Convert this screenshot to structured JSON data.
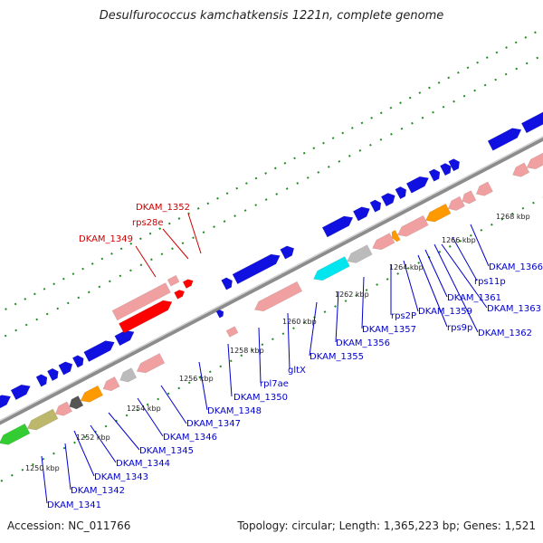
{
  "header": {
    "title": "Desulfurococcus kamchatkensis 1221n, complete genome"
  },
  "footer": {
    "accession": "Accession: NC_011766",
    "stats": "Topology: circular; Length: 1,365,223 bp; Genes: 1,521"
  },
  "colors": {
    "backbone": "#8c8c8c",
    "cds_forward": "#1010e0",
    "cds_reverse": "#f0a0a0",
    "highlight": "#ff0000",
    "rna_cyan": "#00e5ee",
    "orange": "#ff9900",
    "olive": "#bdb76b",
    "green": "#33cc33",
    "grey": "#bbbbbb",
    "dark": "#555555",
    "tick": "#228b22",
    "label_blue": "#0000cc",
    "label_red": "#cc0000"
  },
  "scale": {
    "kbp_ticks": [
      "1250 kbp",
      "1252 kbp",
      "1254 kbp",
      "1256 kbp",
      "1258 kbp",
      "1260 kbp",
      "1262 kbp",
      "1264 kbp",
      "1266 kbp",
      "1268 kbp"
    ]
  },
  "genes": {
    "red_labels": [
      "DKAM_1352",
      "rps28e",
      "DKAM_1349"
    ],
    "blue_labels": [
      "DKAM_1366",
      "rps11p",
      "DKAM_1363",
      "DKAM_1361",
      "DKAM_1362",
      "rps9p",
      "DKAM_1359",
      "rps2P",
      "DKAM_1357",
      "DKAM_1356",
      "DKAM_1355",
      "gltX",
      "rpl7ae",
      "DKAM_1350",
      "DKAM_1348",
      "DKAM_1347",
      "DKAM_1346",
      "DKAM_1345",
      "DKAM_1344",
      "DKAM_1343",
      "DKAM_1342",
      "DKAM_1341"
    ]
  }
}
